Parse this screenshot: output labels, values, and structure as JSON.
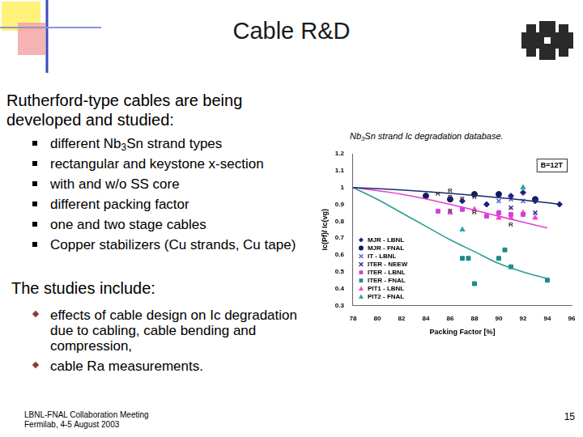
{
  "slide": {
    "title": "Cable R&D",
    "intro": "Rutherford-type cables are being developed and studied:",
    "bullets": [
      "different Nb3Sn strand types",
      "rectangular and keystone x-section",
      "with and w/o SS core",
      "different packing factor",
      "one and two stage cables",
      "Copper stabilizers (Cu strands, Cu tape)"
    ],
    "studies_heading": "The studies include:",
    "studies": [
      "effects of cable design on Ic degradation due to cabling, cable bending and compression,",
      "cable Ra measurements."
    ],
    "footer": [
      "LBNL-FNAL Collaboration Meeting",
      "Fermilab, 4-5 August 2003"
    ],
    "page_number": 15
  },
  "chart_data": {
    "type": "scatter",
    "title": "Nb3Sn strand Ic degradation database.",
    "annotation": "B=12T",
    "x_label": "Packing Factor [%]",
    "y_label": "Ic(Pf)/ Ic(vg)",
    "xlim": [
      78,
      96
    ],
    "xticks": [
      78,
      80,
      82,
      84,
      86,
      88,
      90,
      92,
      94,
      96
    ],
    "ylim": [
      0.3,
      1.2
    ],
    "yticks": [
      0.3,
      0.4,
      0.5,
      0.6,
      0.7,
      0.8,
      0.9,
      1,
      1.1,
      1.2
    ],
    "grid": false,
    "legend": "lower left",
    "series": [
      {
        "name": "MJR - LBNL",
        "color": "#1a237e",
        "marker": "diamond",
        "x": [
          87,
          89,
          91,
          92,
          93,
          95
        ],
        "values": [
          0.92,
          0.9,
          0.95,
          0.97,
          0.92,
          0.9
        ]
      },
      {
        "name": "MJR - FNAL",
        "color": "#0d1b5e",
        "marker": "circle",
        "x": [
          84,
          86,
          88,
          90,
          93
        ],
        "values": [
          0.95,
          0.93,
          0.96,
          0.96,
          0.93
        ]
      },
      {
        "name": "IT - LBNL",
        "color": "#5b6bd0",
        "marker": "x",
        "x": [
          90,
          91,
          92
        ],
        "values": [
          0.92,
          0.93,
          0.92
        ]
      },
      {
        "name": "ITER - NEEW",
        "color": "#3a2a8a",
        "marker": "x",
        "x": [
          91,
          93
        ],
        "values": [
          0.88,
          0.85
        ]
      },
      {
        "name": "ITER - LBNL",
        "color": "#d63fd6",
        "marker": "square",
        "x": [
          85,
          87,
          89,
          90,
          91,
          92
        ],
        "values": [
          0.86,
          0.87,
          0.83,
          0.85,
          0.84,
          0.84
        ]
      },
      {
        "name": "ITER - FNAL",
        "color": "#1f8a8a",
        "marker": "square",
        "x": [
          87,
          87.5,
          88,
          90,
          90.5,
          91,
          94
        ],
        "values": [
          0.58,
          0.58,
          0.43,
          0.58,
          0.63,
          0.53,
          0.45
        ]
      },
      {
        "name": "PIT1 - LBNL",
        "color": "#ff3fc8",
        "marker": "triangle",
        "x": [
          86,
          88,
          90,
          91,
          92,
          93
        ],
        "values": [
          0.85,
          0.87,
          0.82,
          0.82,
          0.85,
          0.82
        ]
      },
      {
        "name": "PIT2 - FNAL",
        "color": "#2aa7a7",
        "marker": "triangle",
        "x": [
          87,
          90,
          92
        ],
        "values": [
          0.75,
          0.85,
          1
        ]
      }
    ],
    "fit_curves": [
      {
        "color": "#1c2a6e",
        "line_style": "solid",
        "x": [
          78,
          82,
          86,
          90,
          94,
          95
        ],
        "values": [
          1,
          0.985,
          0.965,
          0.94,
          0.91,
          0.9
        ]
      },
      {
        "color": "#e040d0",
        "line_style": "solid",
        "x": [
          78,
          82,
          86,
          90,
          94
        ],
        "values": [
          1,
          0.96,
          0.9,
          0.83,
          0.76
        ]
      },
      {
        "color": "#2a9d8f",
        "line_style": "solid",
        "x": [
          78,
          80,
          82,
          84,
          86,
          88,
          90,
          92,
          94
        ],
        "values": [
          1,
          0.93,
          0.85,
          0.77,
          0.69,
          0.62,
          0.55,
          0.5,
          0.46
        ]
      }
    ],
    "r_markers": {
      "label": "R",
      "x": [
        85,
        86,
        86,
        87,
        88,
        86,
        88,
        91
      ],
      "values": [
        0.96,
        0.98,
        0.94,
        0.93,
        0.94,
        0.86,
        0.85,
        0.78
      ]
    }
  }
}
